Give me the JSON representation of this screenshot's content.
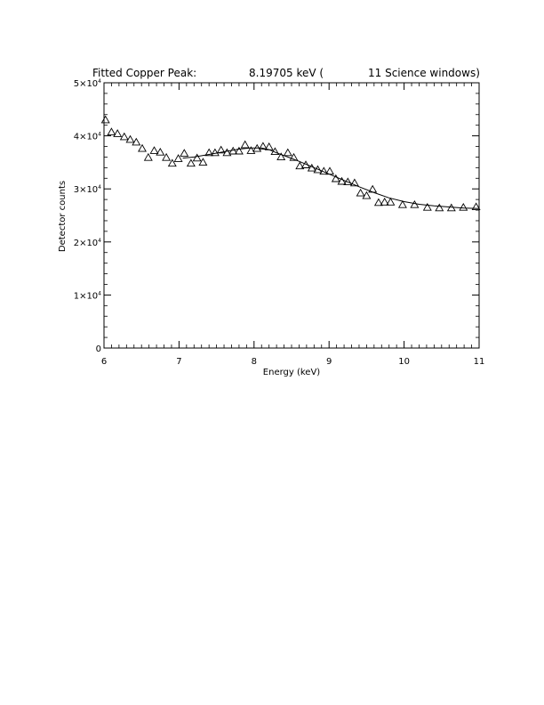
{
  "chart_data": {
    "type": "scatter",
    "title_parts": [
      "Fitted Copper Peak:",
      "8.19705 keV (",
      "11 Science windows)"
    ],
    "xlabel": "Energy (keV)",
    "ylabel": "Detector counts",
    "xlim": [
      6,
      11
    ],
    "ylim": [
      0,
      50000
    ],
    "x_ticks": [
      6,
      7,
      8,
      9,
      10,
      11
    ],
    "x_tick_labels": [
      "6",
      "7",
      "8",
      "9",
      "10",
      "11"
    ],
    "y_ticks": [
      0,
      10000,
      20000,
      30000,
      40000,
      50000
    ],
    "y_tick_labels": [
      {
        "mantissa": "0",
        "exp": ""
      },
      {
        "mantissa": "1×10",
        "exp": "4"
      },
      {
        "mantissa": "2×10",
        "exp": "4"
      },
      {
        "mantissa": "3×10",
        "exp": "4"
      },
      {
        "mantissa": "4×10",
        "exp": "4"
      },
      {
        "mantissa": "5×10",
        "exp": "4"
      }
    ],
    "grid": false,
    "series": [
      {
        "marker": "triangle",
        "x": [
          6.02,
          6.1,
          6.18,
          6.27,
          6.35,
          6.43,
          6.51,
          6.59,
          6.67,
          6.75,
          6.83,
          6.91,
          6.99,
          7.07,
          7.16,
          7.24,
          7.32,
          7.4,
          7.48,
          7.56,
          7.64,
          7.72,
          7.8,
          7.88,
          7.96,
          8.04,
          8.12,
          8.2,
          8.28,
          8.36,
          8.45,
          8.53,
          8.61,
          8.69,
          8.77,
          8.85,
          8.93,
          9.01,
          9.09,
          9.17,
          9.25,
          9.34,
          9.42,
          9.5,
          9.58,
          9.66,
          9.74,
          9.82,
          9.98,
          10.14,
          10.31,
          10.47,
          10.63,
          10.79,
          10.96
        ],
        "y": [
          43000,
          40700,
          40400,
          39800,
          39300,
          38800,
          37600,
          35900,
          37200,
          36900,
          35900,
          34800,
          35700,
          36700,
          34800,
          35800,
          35000,
          36800,
          36800,
          37300,
          36800,
          37100,
          37100,
          38300,
          37200,
          37600,
          38000,
          37900,
          37000,
          36000,
          36800,
          35900,
          34300,
          34500,
          33900,
          33600,
          33300,
          33300,
          31900,
          31400,
          31300,
          31100,
          29200,
          28700,
          29900,
          27400,
          27500,
          27500,
          27000,
          27000,
          26500,
          26400,
          26400,
          26500,
          26600
        ]
      },
      {
        "marker": "line",
        "x": [
          7.05,
          7.2,
          7.4,
          7.6,
          7.8,
          7.95,
          8.1,
          8.2,
          8.3,
          8.45,
          8.6,
          8.75,
          8.9,
          9.05,
          9.2,
          9.4,
          9.6,
          9.8,
          10.0,
          10.2,
          10.4,
          10.6,
          10.8,
          11.0
        ],
        "y": [
          35800,
          36000,
          36500,
          37000,
          37500,
          37700,
          37700,
          37400,
          36800,
          36000,
          35200,
          34300,
          33400,
          32500,
          31600,
          30400,
          29300,
          28300,
          27600,
          27100,
          26800,
          26600,
          26400,
          26300
        ]
      }
    ]
  }
}
